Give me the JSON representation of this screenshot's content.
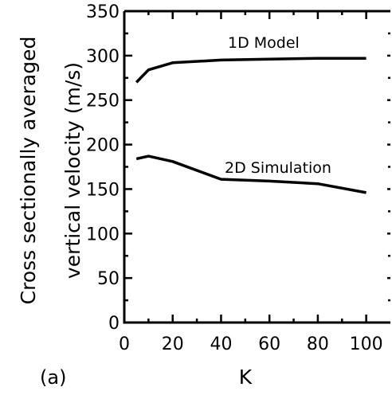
{
  "chart_data": {
    "type": "line",
    "panel_label": "(a)",
    "xlabel": "K",
    "ylabel_lines": [
      "Cross sectionally averaged",
      "vertical velocity (m/s)"
    ],
    "xlim": [
      0,
      110
    ],
    "ylim": [
      0,
      350
    ],
    "x_ticks": [
      0,
      20,
      40,
      60,
      80,
      100
    ],
    "y_ticks": [
      0,
      50,
      100,
      150,
      200,
      250,
      300,
      350
    ],
    "series": [
      {
        "name": "1D Model",
        "x": [
          5,
          10,
          20,
          40,
          60,
          80,
          100
        ],
        "y": [
          270,
          284,
          292,
          295,
          296,
          297,
          297
        ]
      },
      {
        "name": "2D Simulation",
        "x": [
          5,
          10,
          20,
          40,
          60,
          80,
          100
        ],
        "y": [
          184,
          187,
          181,
          161,
          159,
          156,
          146
        ]
      }
    ],
    "grid": false,
    "legend": "inline labels above each line"
  }
}
